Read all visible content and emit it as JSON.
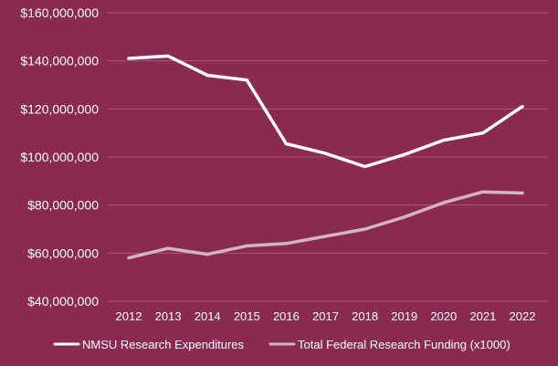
{
  "chart_data": {
    "type": "line",
    "title": "",
    "xlabel": "",
    "ylabel": "",
    "x": [
      "2012",
      "2013",
      "2014",
      "2015",
      "2016",
      "2017",
      "2018",
      "2019",
      "2020",
      "2021",
      "2022"
    ],
    "ylim": [
      40000000,
      160000000
    ],
    "y_ticks": [
      40000000,
      60000000,
      80000000,
      100000000,
      120000000,
      140000000,
      160000000
    ],
    "y_tick_labels": [
      "$40,000,000",
      "$60,000,000",
      "$80,000,000",
      "$100,000,000",
      "$120,000,000",
      "$140,000,000",
      "$160,000,000"
    ],
    "grid": true,
    "legend_position": "bottom",
    "series": [
      {
        "name": "NMSU Research Expenditures",
        "color": "#ffffff",
        "values": [
          141000000,
          142000000,
          134000000,
          132000000,
          105500000,
          101500000,
          96000000,
          101000000,
          107000000,
          110000000,
          121000000
        ]
      },
      {
        "name": "Total Federal Research Funding (x1000)",
        "color": "#d3b4c2",
        "values": [
          58000000,
          62000000,
          59500000,
          63000000,
          64000000,
          67000000,
          70000000,
          75000000,
          81000000,
          85500000,
          85000000
        ]
      }
    ]
  },
  "colors": {
    "background": "#8a2a50",
    "gridline": "#a9577a",
    "text": "#ffffff"
  }
}
